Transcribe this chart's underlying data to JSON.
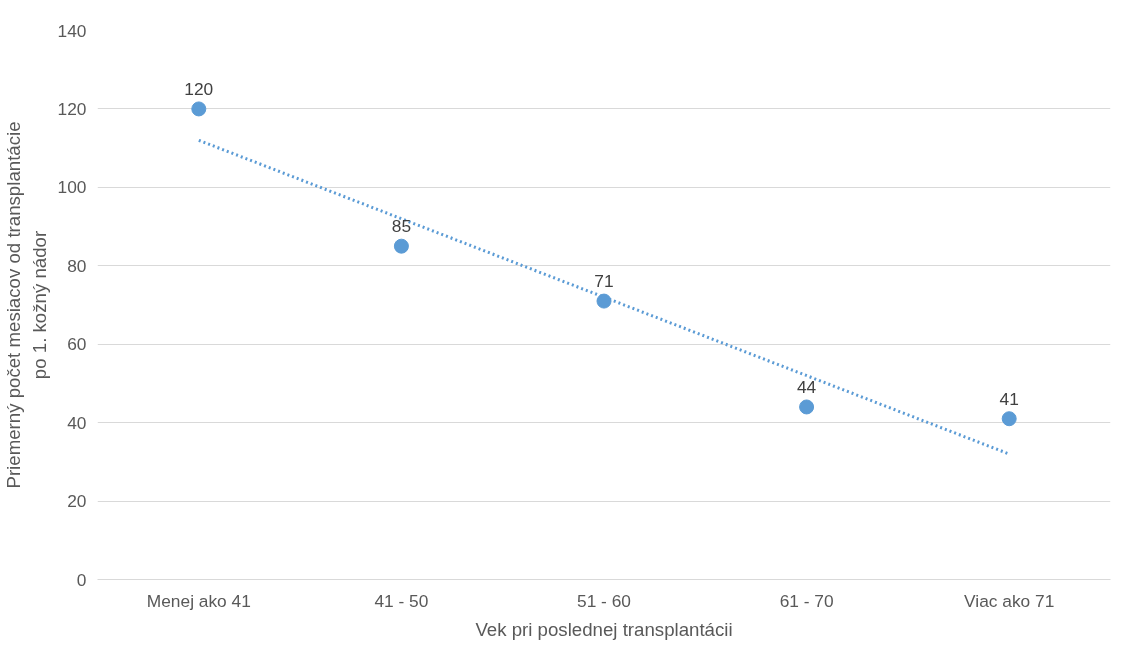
{
  "chart_data": {
    "type": "scatter",
    "xlabel": "Vek pri poslednej transplantácii",
    "ylabel": "Priemerný počet mesiacov od transplantácie\npo 1. kožný nádor",
    "categories": [
      "Menej ako 41",
      "41 - 50",
      "51 - 60",
      "61 - 70",
      "Viac ako 71"
    ],
    "series": [
      {
        "color": "#5b9bd5",
        "values": [
          120,
          85,
          71,
          44,
          41
        ],
        "marker": "circle",
        "data_labels": true
      },
      {
        "type": "line",
        "color": "#5b9bd5",
        "x": [
          "Menej ako 41",
          "Viac ako 71"
        ],
        "values": [
          112,
          32
        ],
        "line_style": "dotted"
      }
    ],
    "ylim": [
      0,
      140
    ],
    "yticks": [
      0,
      20,
      40,
      60,
      80,
      100,
      120,
      140
    ],
    "grid": "y"
  }
}
